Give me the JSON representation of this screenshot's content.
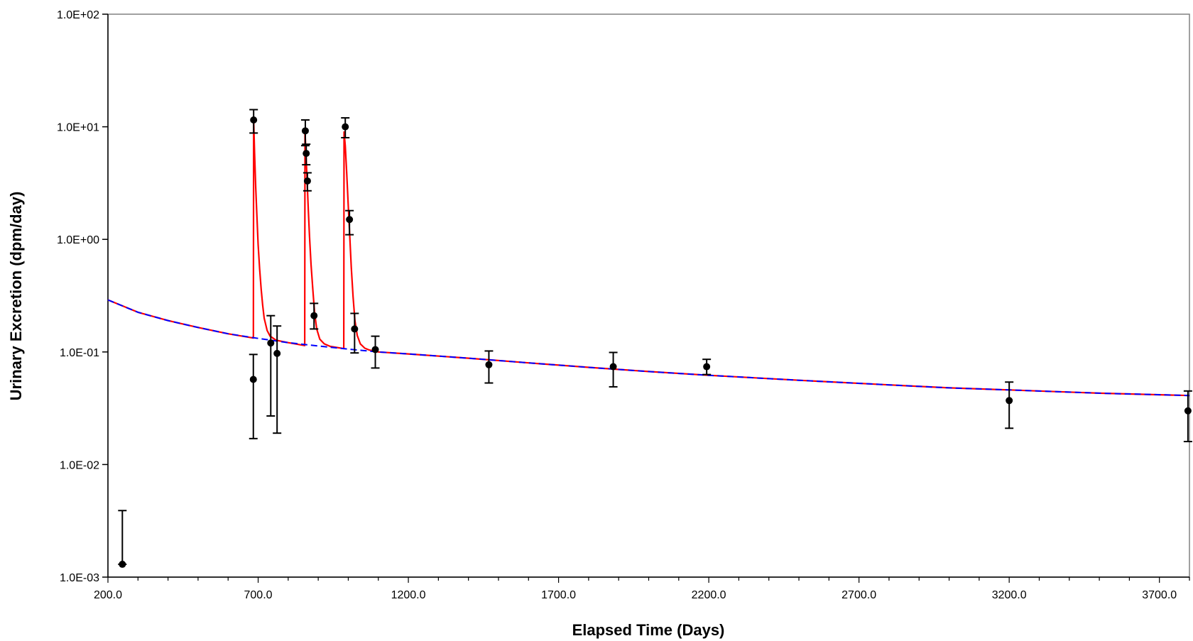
{
  "chart_data": {
    "type": "scatter",
    "title": "",
    "xlabel": "Elapsed Time (Days)",
    "ylabel": "Urinary Excretion (dpm/day)",
    "x_scale": "linear",
    "y_scale": "log",
    "xlim": [
      200,
      3800
    ],
    "ylim": [
      0.001,
      100
    ],
    "x_ticks": [
      200,
      700,
      1200,
      1700,
      2200,
      2700,
      3200,
      3700
    ],
    "x_tick_labels": [
      "200.0",
      "700.0",
      "1200.0",
      "1700.0",
      "2200.0",
      "2700.0",
      "3200.0",
      "3700.0"
    ],
    "y_ticks": [
      0.001,
      0.01,
      0.1,
      1,
      10,
      100
    ],
    "y_tick_labels": [
      "1.0E-03",
      "1.0E-02",
      "1.0E-01",
      "1.0E+00",
      "1.0E+01",
      "1.0E+02"
    ],
    "grid": false,
    "legend": "none",
    "colors": {
      "measurement": "#000000",
      "fit": "#ff0000",
      "baseline": "#0000ff"
    },
    "measurements": [
      {
        "x": 248,
        "y": 0.0013,
        "err_low": 0.0013,
        "err_high": 0.0039
      },
      {
        "x": 684,
        "y": 0.057,
        "err_low": 0.017,
        "err_high": 0.095
      },
      {
        "x": 685,
        "y": 11.5,
        "err_low": 8.8,
        "err_high": 14.2
      },
      {
        "x": 742,
        "y": 0.12,
        "err_low": 0.027,
        "err_high": 0.21
      },
      {
        "x": 763,
        "y": 0.097,
        "err_low": 0.019,
        "err_high": 0.17
      },
      {
        "x": 857,
        "y": 9.2,
        "err_low": 6.8,
        "err_high": 11.5
      },
      {
        "x": 860,
        "y": 5.8,
        "err_low": 4.6,
        "err_high": 7.0
      },
      {
        "x": 864,
        "y": 3.3,
        "err_low": 2.7,
        "err_high": 3.9
      },
      {
        "x": 886,
        "y": 0.21,
        "err_low": 0.16,
        "err_high": 0.27
      },
      {
        "x": 990,
        "y": 10.0,
        "err_low": 8.0,
        "err_high": 12.0
      },
      {
        "x": 1004,
        "y": 1.5,
        "err_low": 1.1,
        "err_high": 1.8
      },
      {
        "x": 1021,
        "y": 0.16,
        "err_low": 0.098,
        "err_high": 0.22
      },
      {
        "x": 1090,
        "y": 0.105,
        "err_low": 0.072,
        "err_high": 0.138
      },
      {
        "x": 1468,
        "y": 0.077,
        "err_low": 0.053,
        "err_high": 0.102
      },
      {
        "x": 1882,
        "y": 0.074,
        "err_low": 0.049,
        "err_high": 0.099
      },
      {
        "x": 2193,
        "y": 0.074,
        "err_low": 0.063,
        "err_high": 0.086
      },
      {
        "x": 3200,
        "y": 0.037,
        "err_low": 0.021,
        "err_high": 0.054
      },
      {
        "x": 3795,
        "y": 0.03,
        "err_low": 0.016,
        "err_high": 0.045
      }
    ],
    "baseline_series": {
      "line_style": "dashed",
      "x": [
        200,
        300,
        400,
        500,
        600,
        700,
        800,
        900,
        1000,
        1100,
        1200,
        1400,
        1600,
        1800,
        2000,
        2200,
        2500,
        2800,
        3000,
        3200,
        3500,
        3800
      ],
      "y": [
        0.29,
        0.225,
        0.19,
        0.165,
        0.145,
        0.132,
        0.121,
        0.113,
        0.106,
        0.1,
        0.096,
        0.088,
        0.08,
        0.073,
        0.067,
        0.062,
        0.056,
        0.051,
        0.048,
        0.046,
        0.043,
        0.041
      ]
    },
    "intake_series": {
      "line_style": "solid",
      "x": [
        200,
        300,
        400,
        500,
        600,
        684,
        685,
        688,
        692,
        696,
        700,
        705,
        710,
        715,
        720,
        730,
        740,
        760,
        800,
        855,
        856,
        859,
        863,
        867,
        871,
        876,
        882,
        888,
        895,
        905,
        920,
        940,
        985,
        986,
        990,
        995,
        1000,
        1005,
        1010,
        1016,
        1022,
        1030,
        1040,
        1055,
        1070,
        1100,
        1200,
        1400,
        1600,
        1800,
        2000,
        2200,
        2500,
        2800,
        3000,
        3200,
        3500,
        3800
      ],
      "y": [
        0.29,
        0.225,
        0.19,
        0.165,
        0.145,
        0.133,
        11.6,
        5.8,
        2.9,
        1.6,
        0.9,
        0.55,
        0.36,
        0.26,
        0.2,
        0.155,
        0.138,
        0.127,
        0.121,
        0.114,
        9.3,
        5.9,
        3.3,
        1.8,
        1.05,
        0.6,
        0.36,
        0.22,
        0.16,
        0.13,
        0.118,
        0.112,
        0.107,
        9.0,
        6.8,
        3.8,
        2.0,
        1.05,
        0.56,
        0.31,
        0.19,
        0.14,
        0.118,
        0.108,
        0.104,
        0.1,
        0.096,
        0.088,
        0.08,
        0.073,
        0.067,
        0.062,
        0.056,
        0.051,
        0.048,
        0.046,
        0.043,
        0.041
      ]
    }
  }
}
